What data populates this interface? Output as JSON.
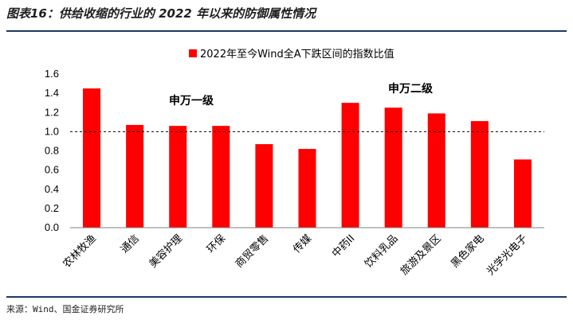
{
  "figure_title": "图表16：供给收缩的行业的 2022 年以来的防御属性情况",
  "source": "来源：Wind、国金证券研究所",
  "chart_data": {
    "type": "bar",
    "categories": [
      "农林牧渔",
      "通信",
      "美容护理",
      "环保",
      "商贸零售",
      "传媒",
      "中药II",
      "饮料乳品",
      "旅游及景区",
      "黑色家电",
      "光学光电子"
    ],
    "series": [
      {
        "name": "2022年至今Wind全A下跌区间的指数比值",
        "values": [
          1.45,
          1.07,
          1.06,
          1.06,
          0.87,
          0.82,
          1.3,
          1.25,
          1.19,
          1.11,
          0.71
        ]
      }
    ],
    "ylim": [
      0,
      1.6
    ],
    "yticks": [
      "0.0",
      "0.2",
      "0.4",
      "0.6",
      "0.8",
      "1.0",
      "1.2",
      "1.4",
      "1.6"
    ],
    "reference_line": 1.0,
    "annotations": [
      "申万一级",
      "申万二级"
    ],
    "legend_position": "top",
    "bar_color": "#ff0000"
  }
}
